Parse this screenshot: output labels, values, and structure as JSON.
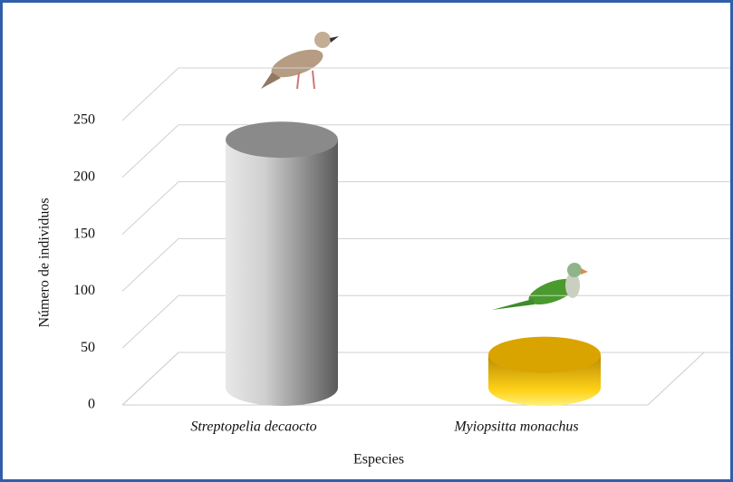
{
  "chart_data": {
    "type": "cylinder-bar",
    "categories": [
      "Streptopelia decaocto",
      "Myiopsitta monachus"
    ],
    "series": [
      {
        "values": [
          218,
          29
        ],
        "colors": [
          "#8a8a8a",
          "#d9a400"
        ]
      }
    ],
    "ylim": [
      0,
      250
    ],
    "yticks": [
      0,
      50,
      100,
      150,
      200,
      250
    ],
    "y_label": "Número de individuos",
    "x_label": "Especies",
    "grid": true
  }
}
